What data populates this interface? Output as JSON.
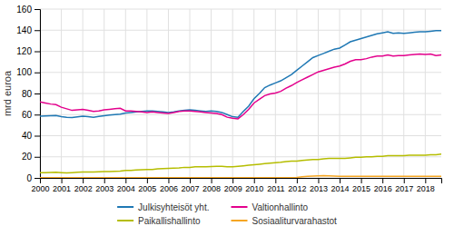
{
  "chart_data": {
    "type": "line",
    "y_label": "mrd euroa",
    "x": [
      2000,
      2000.25,
      2000.5,
      2000.75,
      2001,
      2001.25,
      2001.5,
      2001.75,
      2002,
      2002.25,
      2002.5,
      2002.75,
      2003,
      2003.25,
      2003.5,
      2003.75,
      2004,
      2004.25,
      2004.5,
      2004.75,
      2005,
      2005.25,
      2005.5,
      2005.75,
      2006,
      2006.25,
      2006.5,
      2006.75,
      2007,
      2007.25,
      2007.5,
      2007.75,
      2008,
      2008.25,
      2008.5,
      2008.75,
      2009,
      2009.25,
      2009.5,
      2009.75,
      2010,
      2010.25,
      2010.5,
      2010.75,
      2011,
      2011.25,
      2011.5,
      2011.75,
      2012,
      2012.25,
      2012.5,
      2012.75,
      2013,
      2013.25,
      2013.5,
      2013.75,
      2014,
      2014.25,
      2014.5,
      2014.75,
      2015,
      2015.25,
      2015.5,
      2015.75,
      2016,
      2016.25,
      2016.5,
      2016.75,
      2017,
      2017.25,
      2017.5,
      2017.75,
      2018,
      2018.25,
      2018.5,
      2018.75
    ],
    "xlim": [
      2000,
      2018.75
    ],
    "xticks": [
      2000,
      2001,
      2002,
      2003,
      2004,
      2005,
      2006,
      2007,
      2008,
      2009,
      2010,
      2011,
      2012,
      2013,
      2014,
      2015,
      2016,
      2017,
      2018
    ],
    "ylim": [
      0,
      160
    ],
    "yticks": [
      0,
      20,
      40,
      60,
      80,
      100,
      120,
      140,
      160
    ],
    "grid": true,
    "legend": "bottom",
    "series": [
      {
        "name": "Julkisyhteisöt yht.",
        "color": "#1f78b4",
        "values": [
          58.5,
          58.8,
          59.0,
          59.2,
          58.0,
          57.5,
          57.2,
          57.8,
          58.5,
          58.0,
          57.5,
          58.2,
          59.0,
          59.5,
          60.0,
          60.5,
          61.5,
          62.0,
          62.5,
          63.0,
          63.5,
          63.5,
          63.0,
          62.5,
          62.0,
          62.5,
          63.5,
          64.0,
          64.5,
          64.0,
          63.5,
          63.0,
          63.5,
          63.0,
          62.0,
          60.0,
          58.0,
          57.5,
          63.0,
          68.0,
          75.0,
          80.0,
          85.5,
          88.0,
          90.0,
          92.0,
          95.0,
          98.0,
          102.0,
          106.0,
          110.0,
          114.0,
          116.0,
          118.0,
          120.0,
          122.0,
          123.0,
          126.0,
          129.0,
          130.5,
          132.0,
          133.5,
          135.0,
          136.5,
          137.5,
          138.5,
          137.0,
          137.5,
          137.0,
          137.5,
          138.0,
          138.5,
          138.5,
          139.0,
          139.5,
          139.5
        ]
      },
      {
        "name": "Valtionhallinto",
        "color": "#e3008c",
        "values": [
          72.0,
          71.0,
          70.0,
          69.5,
          67.0,
          65.5,
          64.0,
          64.5,
          65.0,
          64.0,
          63.0,
          63.5,
          64.5,
          65.0,
          65.5,
          66.0,
          63.5,
          63.5,
          63.0,
          62.5,
          62.0,
          62.5,
          62.0,
          61.5,
          61.0,
          62.0,
          63.0,
          63.5,
          63.5,
          63.0,
          62.5,
          62.0,
          61.5,
          61.0,
          60.0,
          57.5,
          56.5,
          56.0,
          60.0,
          65.0,
          71.0,
          74.5,
          78.0,
          79.5,
          80.5,
          82.0,
          85.0,
          87.5,
          90.5,
          93.0,
          95.5,
          98.0,
          100.5,
          102.0,
          103.5,
          105.0,
          106.0,
          108.0,
          110.5,
          112.0,
          112.0,
          113.0,
          114.5,
          115.5,
          115.5,
          116.5,
          115.5,
          116.0,
          116.0,
          116.5,
          117.0,
          117.5,
          117.0,
          117.5,
          116.0,
          116.5
        ]
      },
      {
        "name": "Paikallishallinto",
        "color": "#b5bd00",
        "values": [
          5.0,
          5.0,
          5.2,
          5.3,
          5.0,
          4.8,
          5.0,
          5.3,
          5.5,
          5.5,
          5.5,
          5.8,
          6.0,
          6.0,
          6.2,
          6.5,
          7.0,
          7.0,
          7.5,
          7.8,
          8.0,
          8.0,
          8.5,
          8.8,
          9.0,
          9.2,
          9.5,
          10.0,
          10.0,
          10.5,
          10.5,
          10.5,
          10.8,
          11.0,
          11.0,
          10.5,
          10.5,
          11.0,
          11.5,
          12.0,
          12.5,
          13.0,
          13.5,
          14.0,
          14.5,
          14.8,
          15.5,
          16.0,
          16.0,
          16.5,
          17.0,
          17.5,
          17.5,
          18.0,
          18.5,
          18.5,
          18.5,
          18.5,
          19.0,
          19.5,
          19.5,
          20.0,
          20.0,
          20.5,
          20.5,
          21.0,
          21.0,
          21.0,
          21.0,
          21.5,
          21.5,
          21.5,
          21.5,
          22.0,
          22.0,
          22.5
        ]
      },
      {
        "name": "Sosiaaliturvarahastot",
        "color": "#f5a623",
        "values": [
          0.3,
          0.3,
          0.3,
          0.3,
          0.3,
          0.3,
          0.3,
          0.3,
          0.3,
          0.3,
          0.3,
          0.3,
          0.3,
          0.3,
          0.3,
          0.3,
          0.3,
          0.3,
          0.3,
          0.3,
          0.3,
          0.3,
          0.3,
          0.3,
          0.3,
          0.3,
          0.3,
          0.3,
          0.3,
          0.3,
          0.3,
          0.3,
          0.3,
          0.3,
          0.3,
          0.3,
          0.3,
          0.3,
          0.3,
          0.3,
          0.3,
          0.3,
          0.3,
          0.3,
          0.3,
          0.3,
          0.3,
          0.3,
          0.5,
          1.0,
          1.5,
          1.8,
          2.0,
          2.2,
          2.0,
          1.8,
          1.5,
          1.5,
          1.5,
          1.5,
          1.5,
          1.5,
          1.5,
          1.5,
          1.5,
          1.5,
          1.5,
          1.5,
          1.5,
          1.5,
          1.5,
          1.5,
          1.5,
          1.5,
          1.5,
          1.5
        ]
      }
    ]
  }
}
